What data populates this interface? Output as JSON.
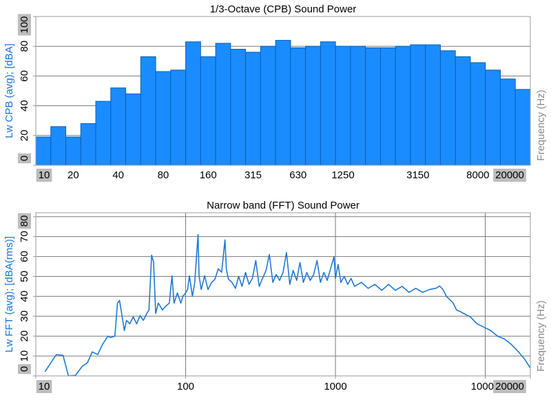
{
  "chart_data": [
    {
      "type": "bar",
      "title": "1/3-Octave (CPB) Sound Power",
      "ylabel": "Lw CPB (avg); [dBA]",
      "xlabel": "Frequency (Hz)",
      "categories": [
        "10",
        null,
        "20",
        null,
        null,
        "40",
        null,
        null,
        "80",
        null,
        null,
        "160",
        null,
        null,
        "315",
        null,
        null,
        "630",
        null,
        null,
        "1250",
        null,
        null,
        null,
        null,
        "3150",
        null,
        null,
        null,
        "8000",
        null,
        null,
        "20000"
      ],
      "values": [
        19,
        26,
        19,
        28,
        43,
        52,
        48,
        73,
        63,
        64,
        83,
        73,
        82,
        78,
        76,
        80,
        84,
        79,
        80,
        83,
        80,
        80,
        79,
        79,
        80,
        81,
        81,
        77,
        73,
        69,
        64,
        58,
        51
      ],
      "color": "#1a8cff",
      "edgecolor": "#0b5fb8",
      "ylim": [
        0,
        100
      ],
      "yticks": [
        0,
        20,
        40,
        60,
        80,
        100
      ],
      "xgrid": false,
      "ygrid": true
    },
    {
      "type": "line",
      "title": "Narrow band (FFT) Sound Power",
      "ylabel": "Lw FFT (avg); [dBA(rms)]",
      "xlabel": "Frequency (Hz)",
      "x": [
        11.5,
        13.7,
        15.2,
        16.5,
        18.4,
        20.4,
        22.1,
        23.8,
        25.9,
        27.9,
        30.3,
        31.6,
        33.7,
        35.1,
        36.2,
        37.4,
        39,
        40.3,
        42.4,
        44.7,
        47.1,
        49.6,
        52.2,
        55.1,
        56.9,
        59.3,
        61.1,
        63.1,
        65.8,
        70,
        73.1,
        77.8,
        81.1,
        83.7,
        88.1,
        92.9,
        95.9,
        100,
        103,
        106,
        111,
        115,
        121,
        123,
        127,
        134,
        141,
        149,
        157,
        165,
        174,
        183,
        187,
        193,
        204,
        215,
        226,
        238,
        251,
        265,
        279,
        294,
        310,
        326,
        344,
        362,
        382,
        402,
        424,
        447,
        471,
        496,
        522,
        551,
        580,
        611,
        644,
        679,
        716,
        754,
        794,
        837,
        881,
        929,
        979,
        1000,
        1042,
        1087,
        1145,
        1207,
        1272,
        1340,
        1489,
        1653,
        1836,
        2038,
        2263,
        2512,
        2788,
        3097,
        3438,
        3818,
        4239,
        4707,
        4955,
        5227,
        5503,
        5808,
        6109,
        6442,
        6792,
        7161,
        7943,
        8810,
        9795,
        10870,
        12080,
        13400,
        14890,
        16520,
        18360,
        19950
      ],
      "values": [
        2.1,
        10.7,
        10.3,
        0,
        0.3,
        4.8,
        6.6,
        12.1,
        10.7,
        15.9,
        20,
        19.3,
        20,
        36.6,
        37.9,
        31.4,
        22.8,
        27.9,
        26.2,
        29.7,
        26.2,
        30.3,
        27.9,
        31.4,
        33.1,
        60.7,
        57.2,
        31.4,
        36.6,
        33.1,
        34.8,
        36.6,
        50.3,
        36.6,
        41.7,
        36.6,
        40,
        41.7,
        43.4,
        50.3,
        40,
        46.9,
        71,
        50.3,
        43.4,
        50.3,
        43.4,
        46.9,
        48.6,
        53.8,
        52.1,
        68.3,
        53.8,
        48.6,
        47,
        44,
        50,
        45,
        52,
        46,
        49,
        58,
        45,
        49,
        53,
        61,
        47,
        51,
        48,
        52,
        62,
        46,
        53,
        48,
        57,
        47,
        52,
        48,
        51,
        58,
        47,
        52,
        48,
        54,
        60,
        49,
        56,
        47,
        50,
        46,
        49,
        45,
        47,
        44,
        46,
        43,
        46,
        43,
        45,
        42,
        44,
        42,
        43.4,
        44.1,
        45.2,
        43.4,
        40,
        38.3,
        36.6,
        33.1,
        32.4,
        31.4,
        29.7,
        26.2,
        24.5,
        22.8,
        20,
        18.6,
        15.9,
        12.4,
        8.3,
        4.1
      ],
      "color": "#1f78d4",
      "xscale": "log",
      "xlim": [
        10,
        20000
      ],
      "xticks": [
        10,
        100,
        1000,
        10000,
        20000
      ],
      "ylim": [
        0,
        82
      ],
      "yticks": [
        0,
        10,
        20,
        30,
        40,
        50,
        60,
        70,
        80
      ],
      "xgrid": true,
      "ygrid": true
    }
  ]
}
